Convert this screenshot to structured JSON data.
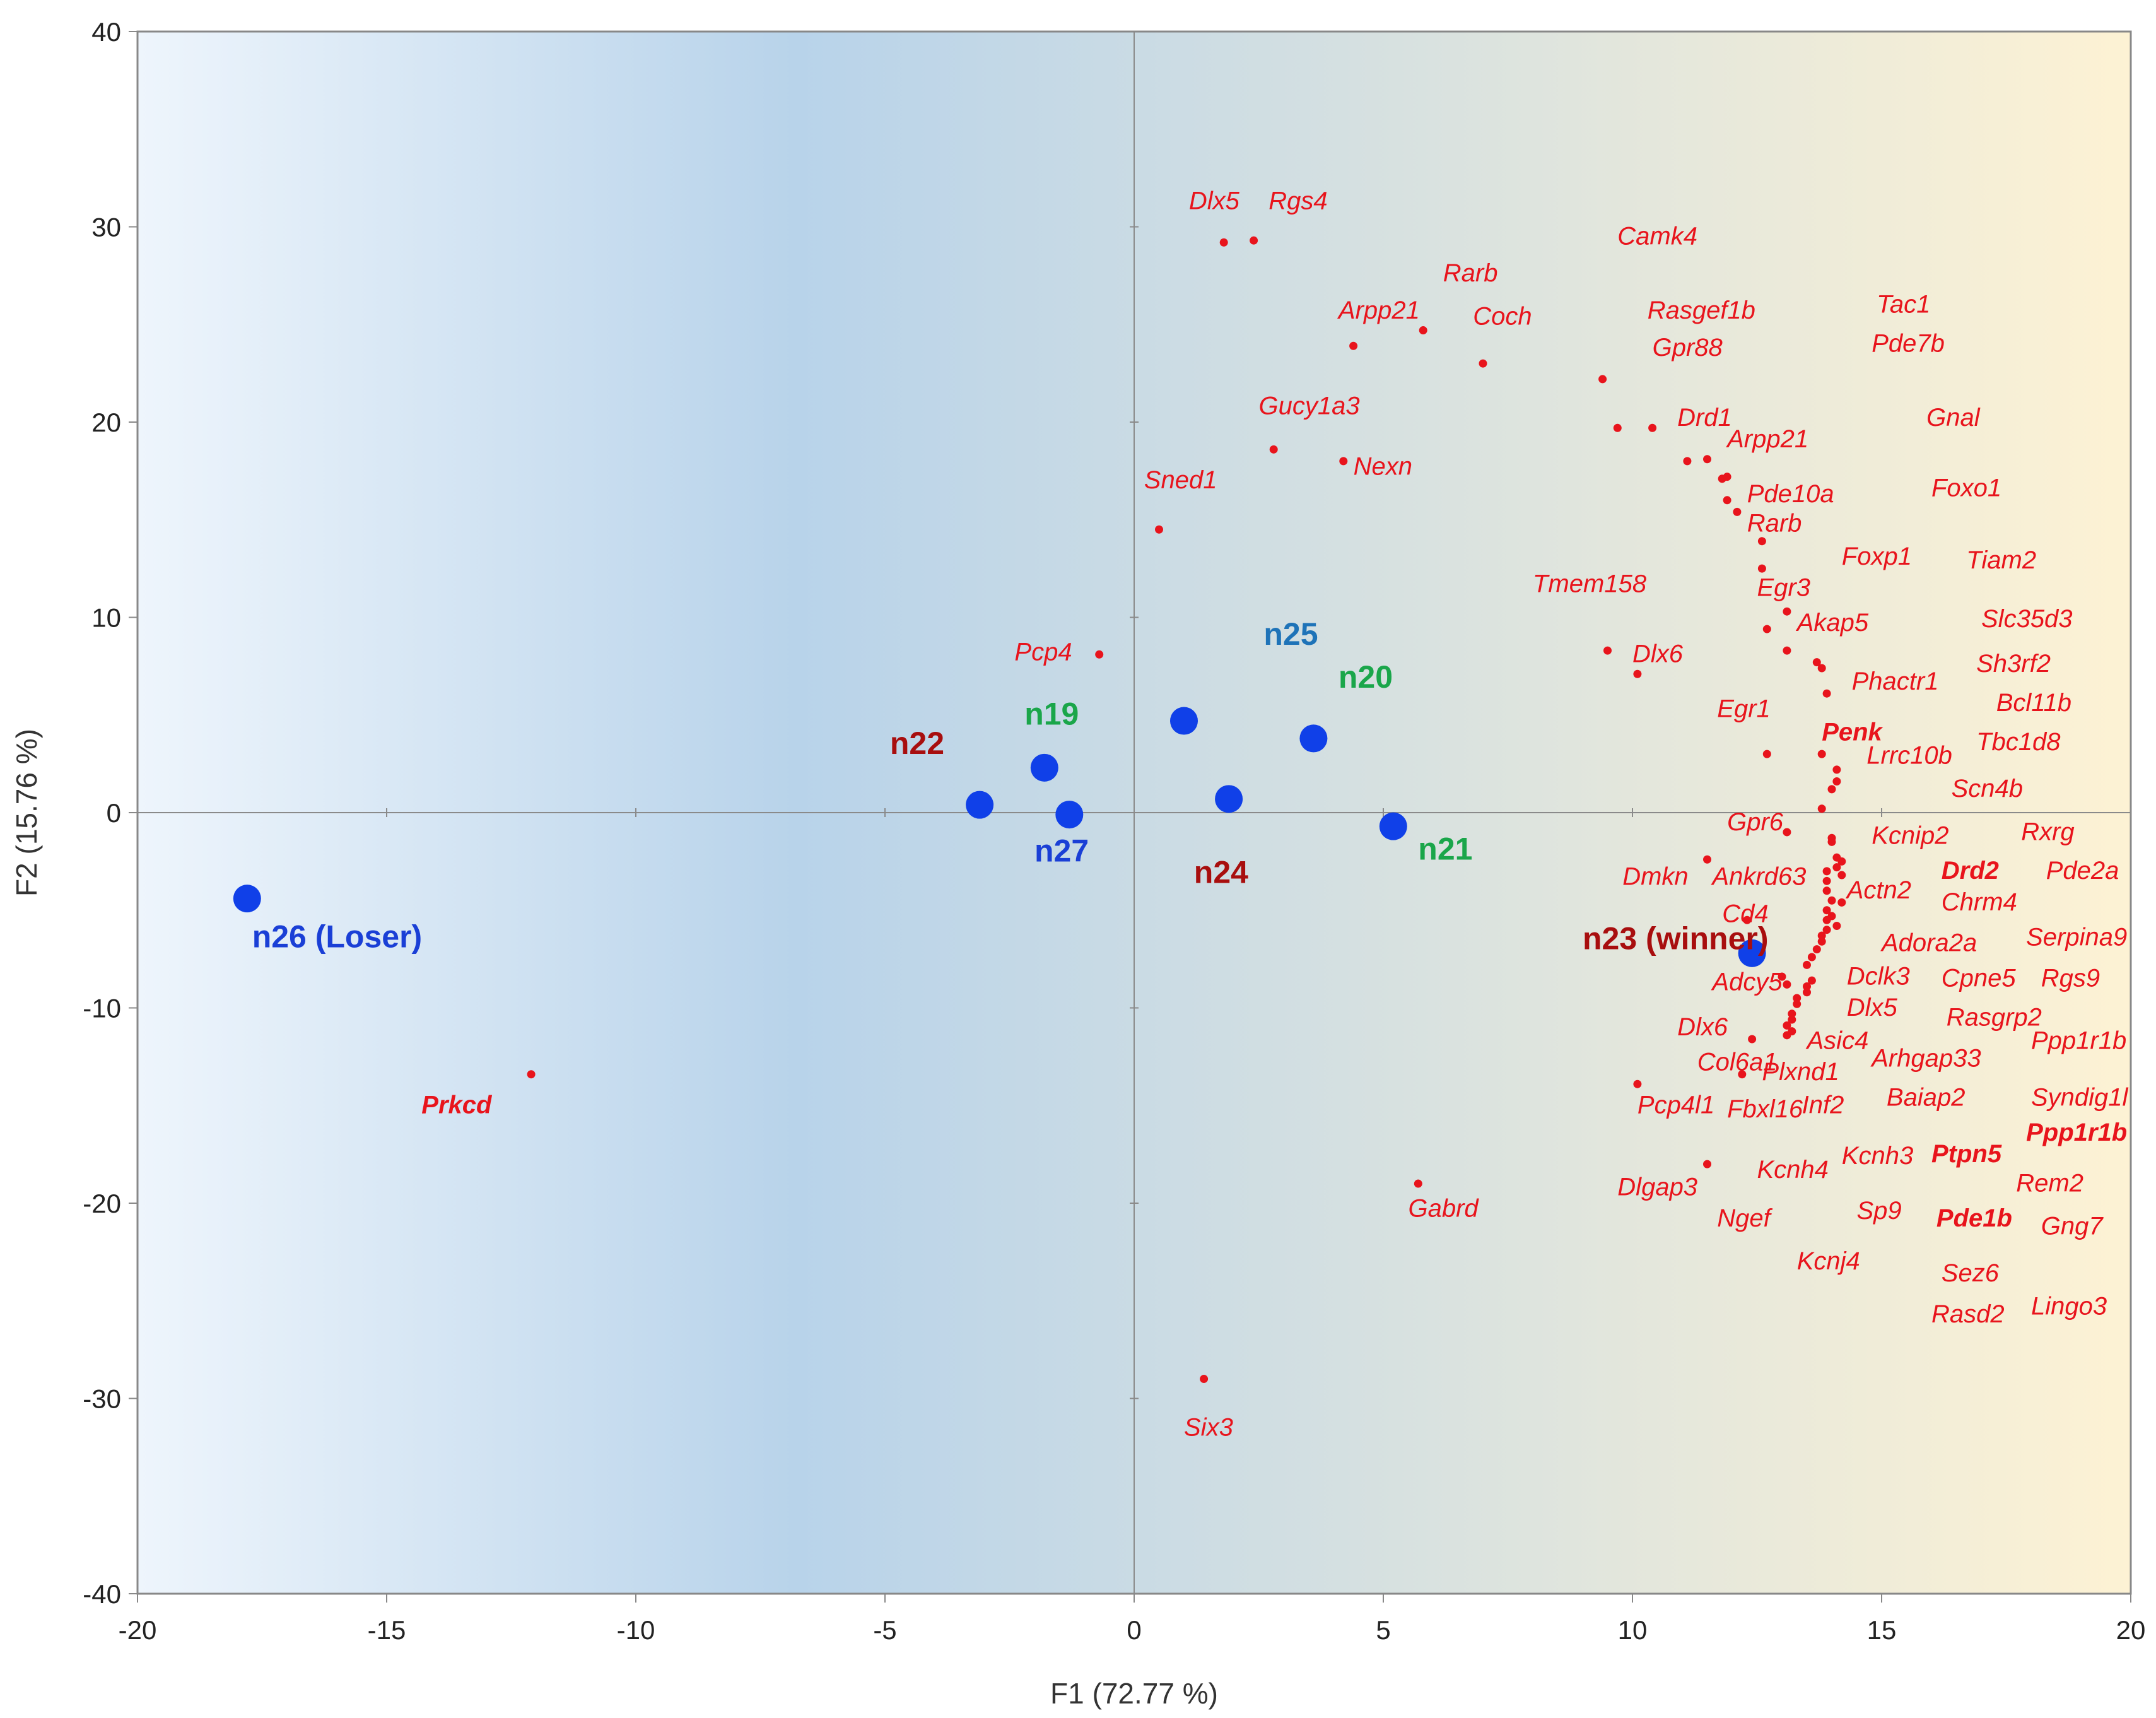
{
  "chart_data": {
    "type": "scatter",
    "title": "",
    "xlabel": "F1 (72.77 %)",
    "ylabel": "F2 (15.76 %)",
    "xlim": [
      -20,
      20
    ],
    "ylim": [
      -40,
      40
    ],
    "x_ticks": [
      -20,
      -15,
      -10,
      -5,
      0,
      5,
      10,
      15,
      20
    ],
    "y_ticks": [
      -40,
      -30,
      -20,
      -10,
      0,
      10,
      20,
      30,
      40
    ],
    "colors": {
      "sample_point": "#1040e8",
      "gene_point": "#e8141c",
      "gene_label": "#e8141c",
      "label_dark_red": "#a80e0e",
      "label_green": "#1aa64a",
      "label_blue": "#1a3fd6",
      "label_teal_blue": "#1e73b8",
      "bg_left": "#eef5fc",
      "bg_mid": "#b8d3ea",
      "bg_right": "#fdf2d4"
    },
    "samples": [
      {
        "name": "n26 (Loser)",
        "x": -17.8,
        "y": -4.4,
        "label_color": "#1a3fd6",
        "lx": -17.7,
        "ly": -6.9
      },
      {
        "name": "n22",
        "x": -3.1,
        "y": 0.4,
        "label_color": "#a80e0e",
        "lx": -4.9,
        "ly": 3.0
      },
      {
        "name": "n19",
        "x": -1.8,
        "y": 2.3,
        "label_color": "#1aa64a",
        "lx": -2.2,
        "ly": 4.5
      },
      {
        "name": "n27",
        "x": -1.3,
        "y": -0.1,
        "label_color": "#1a3fd6",
        "lx": -2.0,
        "ly": -2.5
      },
      {
        "name": "n25",
        "x": 1.0,
        "y": 4.7,
        "label_color": "#1e73b8",
        "lx": 2.6,
        "ly": 8.6
      },
      {
        "name": "n24",
        "x": 1.9,
        "y": 0.7,
        "label_color": "#a80e0e",
        "lx": 1.2,
        "ly": -3.6
      },
      {
        "name": "n20",
        "x": 3.6,
        "y": 3.8,
        "label_color": "#1aa64a",
        "lx": 4.1,
        "ly": 6.4
      },
      {
        "name": "n21",
        "x": 5.2,
        "y": -0.7,
        "label_color": "#1aa64a",
        "lx": 5.7,
        "ly": -2.4
      },
      {
        "name": "n23 (winner)",
        "x": 12.4,
        "y": -7.2,
        "label_color": "#a80e0e",
        "lx": 9.0,
        "ly": -7.0
      }
    ],
    "gene_points": [
      [
        1.8,
        29.2
      ],
      [
        2.4,
        29.3
      ],
      [
        4.4,
        23.9
      ],
      [
        5.8,
        24.7
      ],
      [
        7.0,
        23.0
      ],
      [
        2.8,
        18.6
      ],
      [
        4.2,
        18.0
      ],
      [
        0.5,
        14.5
      ],
      [
        -0.7,
        8.1
      ],
      [
        9.4,
        22.2
      ],
      [
        9.7,
        19.7
      ],
      [
        10.4,
        19.7
      ],
      [
        11.1,
        18.0
      ],
      [
        11.5,
        18.1
      ],
      [
        11.8,
        17.1
      ],
      [
        11.9,
        17.2
      ],
      [
        11.9,
        16.0
      ],
      [
        12.1,
        15.4
      ],
      [
        12.6,
        13.9
      ],
      [
        12.6,
        12.5
      ],
      [
        13.1,
        10.3
      ],
      [
        12.7,
        9.4
      ],
      [
        13.1,
        8.3
      ],
      [
        9.5,
        8.3
      ],
      [
        10.1,
        7.1
      ],
      [
        13.7,
        7.7
      ],
      [
        13.8,
        7.4
      ],
      [
        13.9,
        6.1
      ],
      [
        12.7,
        3.0
      ],
      [
        13.8,
        3.0
      ],
      [
        14.1,
        2.2
      ],
      [
        14.1,
        1.6
      ],
      [
        14.0,
        1.2
      ],
      [
        13.8,
        0.2
      ],
      [
        13.1,
        -1.0
      ],
      [
        14.0,
        -1.3
      ],
      [
        14.0,
        -1.5
      ],
      [
        14.1,
        -2.3
      ],
      [
        14.2,
        -2.5
      ],
      [
        14.1,
        -2.8
      ],
      [
        14.2,
        -3.2
      ],
      [
        13.9,
        -3.0
      ],
      [
        13.9,
        -3.5
      ],
      [
        13.9,
        -4.0
      ],
      [
        14.0,
        -4.5
      ],
      [
        14.2,
        -4.6
      ],
      [
        13.9,
        -5.0
      ],
      [
        14.0,
        -5.3
      ],
      [
        13.9,
        -5.5
      ],
      [
        14.1,
        -5.8
      ],
      [
        13.9,
        -6.0
      ],
      [
        13.8,
        -6.3
      ],
      [
        13.8,
        -6.6
      ],
      [
        13.7,
        -7.0
      ],
      [
        13.6,
        -7.4
      ],
      [
        13.5,
        -7.8
      ],
      [
        13.6,
        -8.6
      ],
      [
        13.5,
        -8.9
      ],
      [
        13.5,
        -9.2
      ],
      [
        13.3,
        -9.5
      ],
      [
        13.3,
        -9.8
      ],
      [
        13.2,
        -10.3
      ],
      [
        13.2,
        -10.6
      ],
      [
        13.1,
        -10.9
      ],
      [
        13.2,
        -11.2
      ],
      [
        13.1,
        -11.4
      ],
      [
        13.1,
        -8.8
      ],
      [
        13.0,
        -8.4
      ],
      [
        11.5,
        -2.4
      ],
      [
        12.3,
        -5.5
      ],
      [
        12.4,
        -11.6
      ],
      [
        10.1,
        -13.9
      ],
      [
        11.5,
        -18.0
      ],
      [
        5.7,
        -19.0
      ],
      [
        12.2,
        -13.4
      ],
      [
        1.4,
        -29.0
      ]
    ],
    "isolated_gene_points": [
      [
        -12.1,
        -13.4
      ]
    ],
    "gene_labels": [
      {
        "text": "Dlx5",
        "x": 1.1,
        "y": 30.9,
        "bold": false
      },
      {
        "text": "Rgs4",
        "x": 2.7,
        "y": 30.9,
        "bold": false
      },
      {
        "text": "Camk4",
        "x": 9.7,
        "y": 29.1,
        "bold": false
      },
      {
        "text": "Rarb",
        "x": 6.2,
        "y": 27.2,
        "bold": false
      },
      {
        "text": "Arpp21",
        "x": 4.1,
        "y": 25.3,
        "bold": false
      },
      {
        "text": "Coch",
        "x": 6.8,
        "y": 25.0,
        "bold": false
      },
      {
        "text": "Rasgef1b",
        "x": 10.3,
        "y": 25.3,
        "bold": false
      },
      {
        "text": "Tac1",
        "x": 14.9,
        "y": 25.6,
        "bold": false
      },
      {
        "text": "Gpr88",
        "x": 10.4,
        "y": 23.4,
        "bold": false
      },
      {
        "text": "Pde7b",
        "x": 14.8,
        "y": 23.6,
        "bold": false
      },
      {
        "text": "Gucy1a3",
        "x": 2.5,
        "y": 20.4,
        "bold": false
      },
      {
        "text": "Drd1",
        "x": 10.9,
        "y": 19.8,
        "bold": false
      },
      {
        "text": "Gnal",
        "x": 15.9,
        "y": 19.8,
        "bold": false
      },
      {
        "text": "Arpp21",
        "x": 11.9,
        "y": 18.7,
        "bold": false
      },
      {
        "text": "Nexn",
        "x": 4.4,
        "y": 17.3,
        "bold": false
      },
      {
        "text": "Foxo1",
        "x": 16.0,
        "y": 16.2,
        "bold": false
      },
      {
        "text": "Sned1",
        "x": 0.2,
        "y": 16.6,
        "bold": false
      },
      {
        "text": "Pde10a",
        "x": 12.3,
        "y": 15.9,
        "bold": false
      },
      {
        "text": "Rarb",
        "x": 12.3,
        "y": 14.4,
        "bold": false
      },
      {
        "text": "Foxp1",
        "x": 14.2,
        "y": 12.7,
        "bold": false
      },
      {
        "text": "Tiam2",
        "x": 16.7,
        "y": 12.5,
        "bold": false
      },
      {
        "text": "Tmem158",
        "x": 8.0,
        "y": 11.3,
        "bold": false
      },
      {
        "text": "Egr3",
        "x": 12.5,
        "y": 11.1,
        "bold": false
      },
      {
        "text": "Slc35d3",
        "x": 17.0,
        "y": 9.5,
        "bold": false
      },
      {
        "text": "Akap5",
        "x": 13.3,
        "y": 9.3,
        "bold": false
      },
      {
        "text": "Pcp4",
        "x": -2.4,
        "y": 7.8,
        "bold": false
      },
      {
        "text": "Dlx6",
        "x": 10.0,
        "y": 7.7,
        "bold": false
      },
      {
        "text": "Sh3rf2",
        "x": 16.9,
        "y": 7.2,
        "bold": false
      },
      {
        "text": "Phactr1",
        "x": 14.4,
        "y": 6.3,
        "bold": false
      },
      {
        "text": "Bcl11b",
        "x": 17.3,
        "y": 5.2,
        "bold": false
      },
      {
        "text": "Egr1",
        "x": 11.7,
        "y": 4.9,
        "bold": false
      },
      {
        "text": "Penk",
        "x": 13.8,
        "y": 3.7,
        "bold": true
      },
      {
        "text": "Tbc1d8",
        "x": 16.9,
        "y": 3.2,
        "bold": false
      },
      {
        "text": "Lrrc10b",
        "x": 14.7,
        "y": 2.5,
        "bold": false
      },
      {
        "text": "Scn4b",
        "x": 16.4,
        "y": 0.8,
        "bold": false
      },
      {
        "text": "Gpr6",
        "x": 11.9,
        "y": -0.9,
        "bold": false
      },
      {
        "text": "Rxrg",
        "x": 17.8,
        "y": -1.4,
        "bold": false
      },
      {
        "text": "Kcnip2",
        "x": 14.8,
        "y": -1.6,
        "bold": false
      },
      {
        "text": "Drd2",
        "x": 16.2,
        "y": -3.4,
        "bold": true
      },
      {
        "text": "Pde2a",
        "x": 18.3,
        "y": -3.4,
        "bold": false
      },
      {
        "text": "Dmkn",
        "x": 9.8,
        "y": -3.7,
        "bold": false
      },
      {
        "text": "Ankrd63",
        "x": 11.6,
        "y": -3.7,
        "bold": false
      },
      {
        "text": "Actn2",
        "x": 14.3,
        "y": -4.4,
        "bold": false
      },
      {
        "text": "Chrm4",
        "x": 16.2,
        "y": -5.0,
        "bold": false
      },
      {
        "text": "Cd4",
        "x": 11.8,
        "y": -5.6,
        "bold": false
      },
      {
        "text": "Serpina9",
        "x": 17.9,
        "y": -6.8,
        "bold": false
      },
      {
        "text": "Adora2a",
        "x": 15.0,
        "y": -7.1,
        "bold": false
      },
      {
        "text": "Adcy5",
        "x": 11.6,
        "y": -9.1,
        "bold": false
      },
      {
        "text": "Dclk3",
        "x": 14.3,
        "y": -8.8,
        "bold": false
      },
      {
        "text": "Cpne5",
        "x": 16.2,
        "y": -8.9,
        "bold": false
      },
      {
        "text": "Rgs9",
        "x": 18.2,
        "y": -8.9,
        "bold": false
      },
      {
        "text": "Dlx5",
        "x": 14.3,
        "y": -10.4,
        "bold": false
      },
      {
        "text": "Rasgrp2",
        "x": 16.3,
        "y": -10.9,
        "bold": false
      },
      {
        "text": "Dlx6",
        "x": 10.9,
        "y": -11.4,
        "bold": false
      },
      {
        "text": "Asic4",
        "x": 13.5,
        "y": -12.1,
        "bold": false
      },
      {
        "text": "Ppp1r1b",
        "x": 18.0,
        "y": -12.1,
        "bold": false
      },
      {
        "text": "Arhgap33",
        "x": 14.8,
        "y": -13.0,
        "bold": false
      },
      {
        "text": "Col6a1",
        "x": 11.3,
        "y": -13.2,
        "bold": false
      },
      {
        "text": "Plxnd1",
        "x": 12.6,
        "y": -13.7,
        "bold": false
      },
      {
        "text": "Baiap2",
        "x": 15.1,
        "y": -15.0,
        "bold": false
      },
      {
        "text": "Syndig1l",
        "x": 18.0,
        "y": -15.0,
        "bold": false
      },
      {
        "text": "Pcp4l1",
        "x": 10.1,
        "y": -15.4,
        "bold": false
      },
      {
        "text": "Fbxl16",
        "x": 11.9,
        "y": -15.6,
        "bold": false
      },
      {
        "text": "Inf2",
        "x": 13.4,
        "y": -15.4,
        "bold": false
      },
      {
        "text": "Ppp1r1b",
        "x": 17.9,
        "y": -16.8,
        "bold": true
      },
      {
        "text": "Kcnh3",
        "x": 14.2,
        "y": -18.0,
        "bold": false
      },
      {
        "text": "Ptpn5",
        "x": 16.0,
        "y": -17.9,
        "bold": true
      },
      {
        "text": "Kcnh4",
        "x": 12.5,
        "y": -18.7,
        "bold": false
      },
      {
        "text": "Dlgap3",
        "x": 9.7,
        "y": -19.6,
        "bold": false
      },
      {
        "text": "Rem2",
        "x": 17.7,
        "y": -19.4,
        "bold": false
      },
      {
        "text": "Gabrd",
        "x": 5.5,
        "y": -20.7,
        "bold": false
      },
      {
        "text": "Sp9",
        "x": 14.5,
        "y": -20.8,
        "bold": false
      },
      {
        "text": "Ngef",
        "x": 11.7,
        "y": -21.2,
        "bold": false
      },
      {
        "text": "Pde1b",
        "x": 16.1,
        "y": -21.2,
        "bold": true
      },
      {
        "text": "Gng7",
        "x": 18.2,
        "y": -21.6,
        "bold": false
      },
      {
        "text": "Kcnj4",
        "x": 13.3,
        "y": -23.4,
        "bold": false
      },
      {
        "text": "Sez6",
        "x": 16.2,
        "y": -24.0,
        "bold": false
      },
      {
        "text": "Rasd2",
        "x": 16.0,
        "y": -26.1,
        "bold": false
      },
      {
        "text": "Lingo3",
        "x": 18.0,
        "y": -25.7,
        "bold": false
      },
      {
        "text": "Six3",
        "x": 1.0,
        "y": -31.9,
        "bold": false
      },
      {
        "text": "Prkcd",
        "x": -14.3,
        "y": -15.4,
        "bold": true
      }
    ]
  }
}
